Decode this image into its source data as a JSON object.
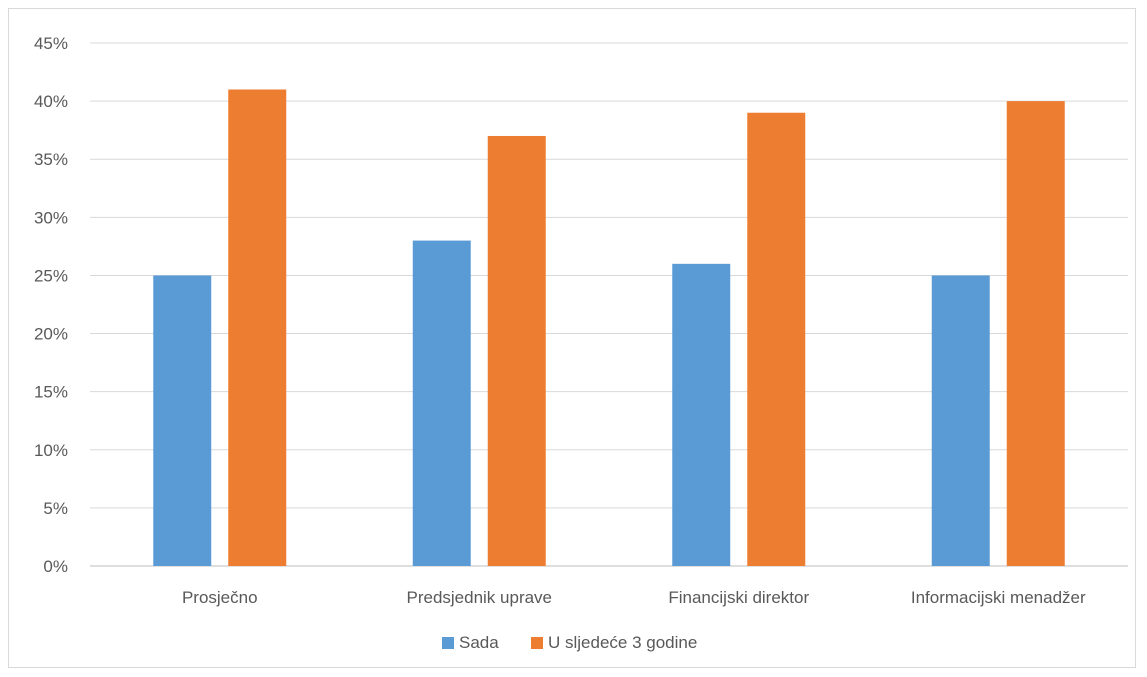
{
  "chart_data": {
    "type": "bar",
    "categories": [
      "Prosječno",
      "Predsjednik uprave",
      "Financijski direktor",
      "Informacijski menadžer"
    ],
    "series": [
      {
        "name": "Sada",
        "values": [
          25,
          28,
          26,
          25
        ],
        "color": "#5b9bd5"
      },
      {
        "name": "U sljedeće 3 godine",
        "values": [
          41,
          37,
          39,
          40
        ],
        "color": "#ed7d31"
      }
    ],
    "ylim": [
      0,
      45
    ],
    "yticks": [
      0,
      5,
      10,
      15,
      20,
      25,
      30,
      35,
      40,
      45
    ],
    "ytick_labels": [
      "0%",
      "5%",
      "10%",
      "15%",
      "20%",
      "25%",
      "30%",
      "35%",
      "40%",
      "45%"
    ],
    "grid": true,
    "legend_position": "bottom",
    "title": "",
    "xlabel": "",
    "ylabel": ""
  }
}
